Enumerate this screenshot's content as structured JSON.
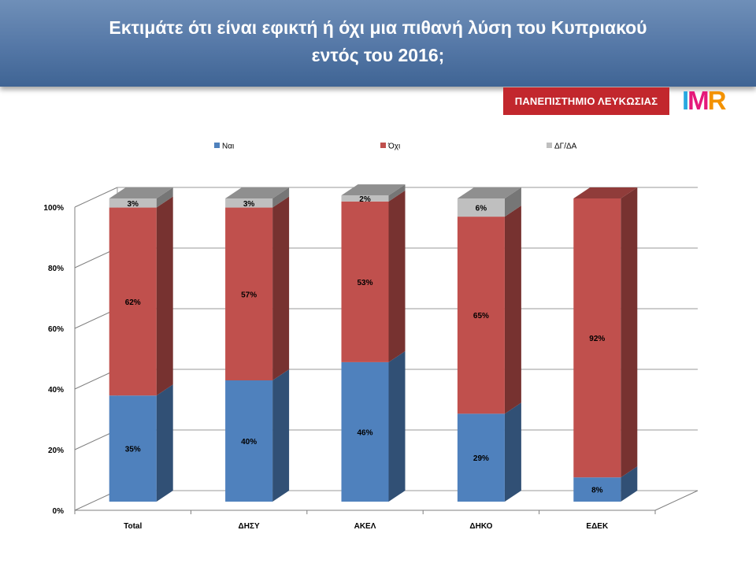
{
  "title_lines": [
    "Εκτιμάτε ότι είναι εφικτή ή όχι μια πιθανή λύση του Κυπριακού",
    "εντός του 2016;"
  ],
  "logos": {
    "university": "ΠΑΝΕΠΙΣΤΗΜΙΟ ΛΕΥΚΩΣΙΑΣ",
    "imr_letters": [
      "I",
      "M",
      "R"
    ]
  },
  "colors": {
    "header": "#5477a6",
    "series_yes": "#4f81bd",
    "series_no": "#c0504d",
    "series_dk": "#bfbfbf"
  },
  "chart_data": {
    "type": "bar",
    "stacked": true,
    "style": "3d",
    "categories": [
      "Total",
      "ΔΗΣΥ",
      "ΑΚΕΛ",
      "ΔΗΚΟ",
      "ΕΔΕΚ"
    ],
    "series": [
      {
        "name": "Ναι",
        "color": "#4f81bd",
        "values": [
          35,
          40,
          46,
          29,
          8
        ],
        "labels": [
          "35%",
          "40%",
          "46%",
          "29%",
          "8%"
        ]
      },
      {
        "name": "Όχι",
        "color": "#c0504d",
        "values": [
          62,
          57,
          53,
          65,
          92
        ],
        "labels": [
          "62%",
          "57%",
          "53%",
          "65%",
          "92%"
        ]
      },
      {
        "name": "ΔΓ/ΔΑ",
        "color": "#bfbfbf",
        "values": [
          3,
          3,
          2,
          6,
          0
        ],
        "labels": [
          "3%",
          "3%",
          "2%",
          "6%",
          ""
        ]
      }
    ],
    "ylim": [
      0,
      100
    ],
    "yticks": [
      "0%",
      "20%",
      "40%",
      "60%",
      "80%",
      "100%"
    ],
    "legend_position": "top",
    "grid": true
  }
}
